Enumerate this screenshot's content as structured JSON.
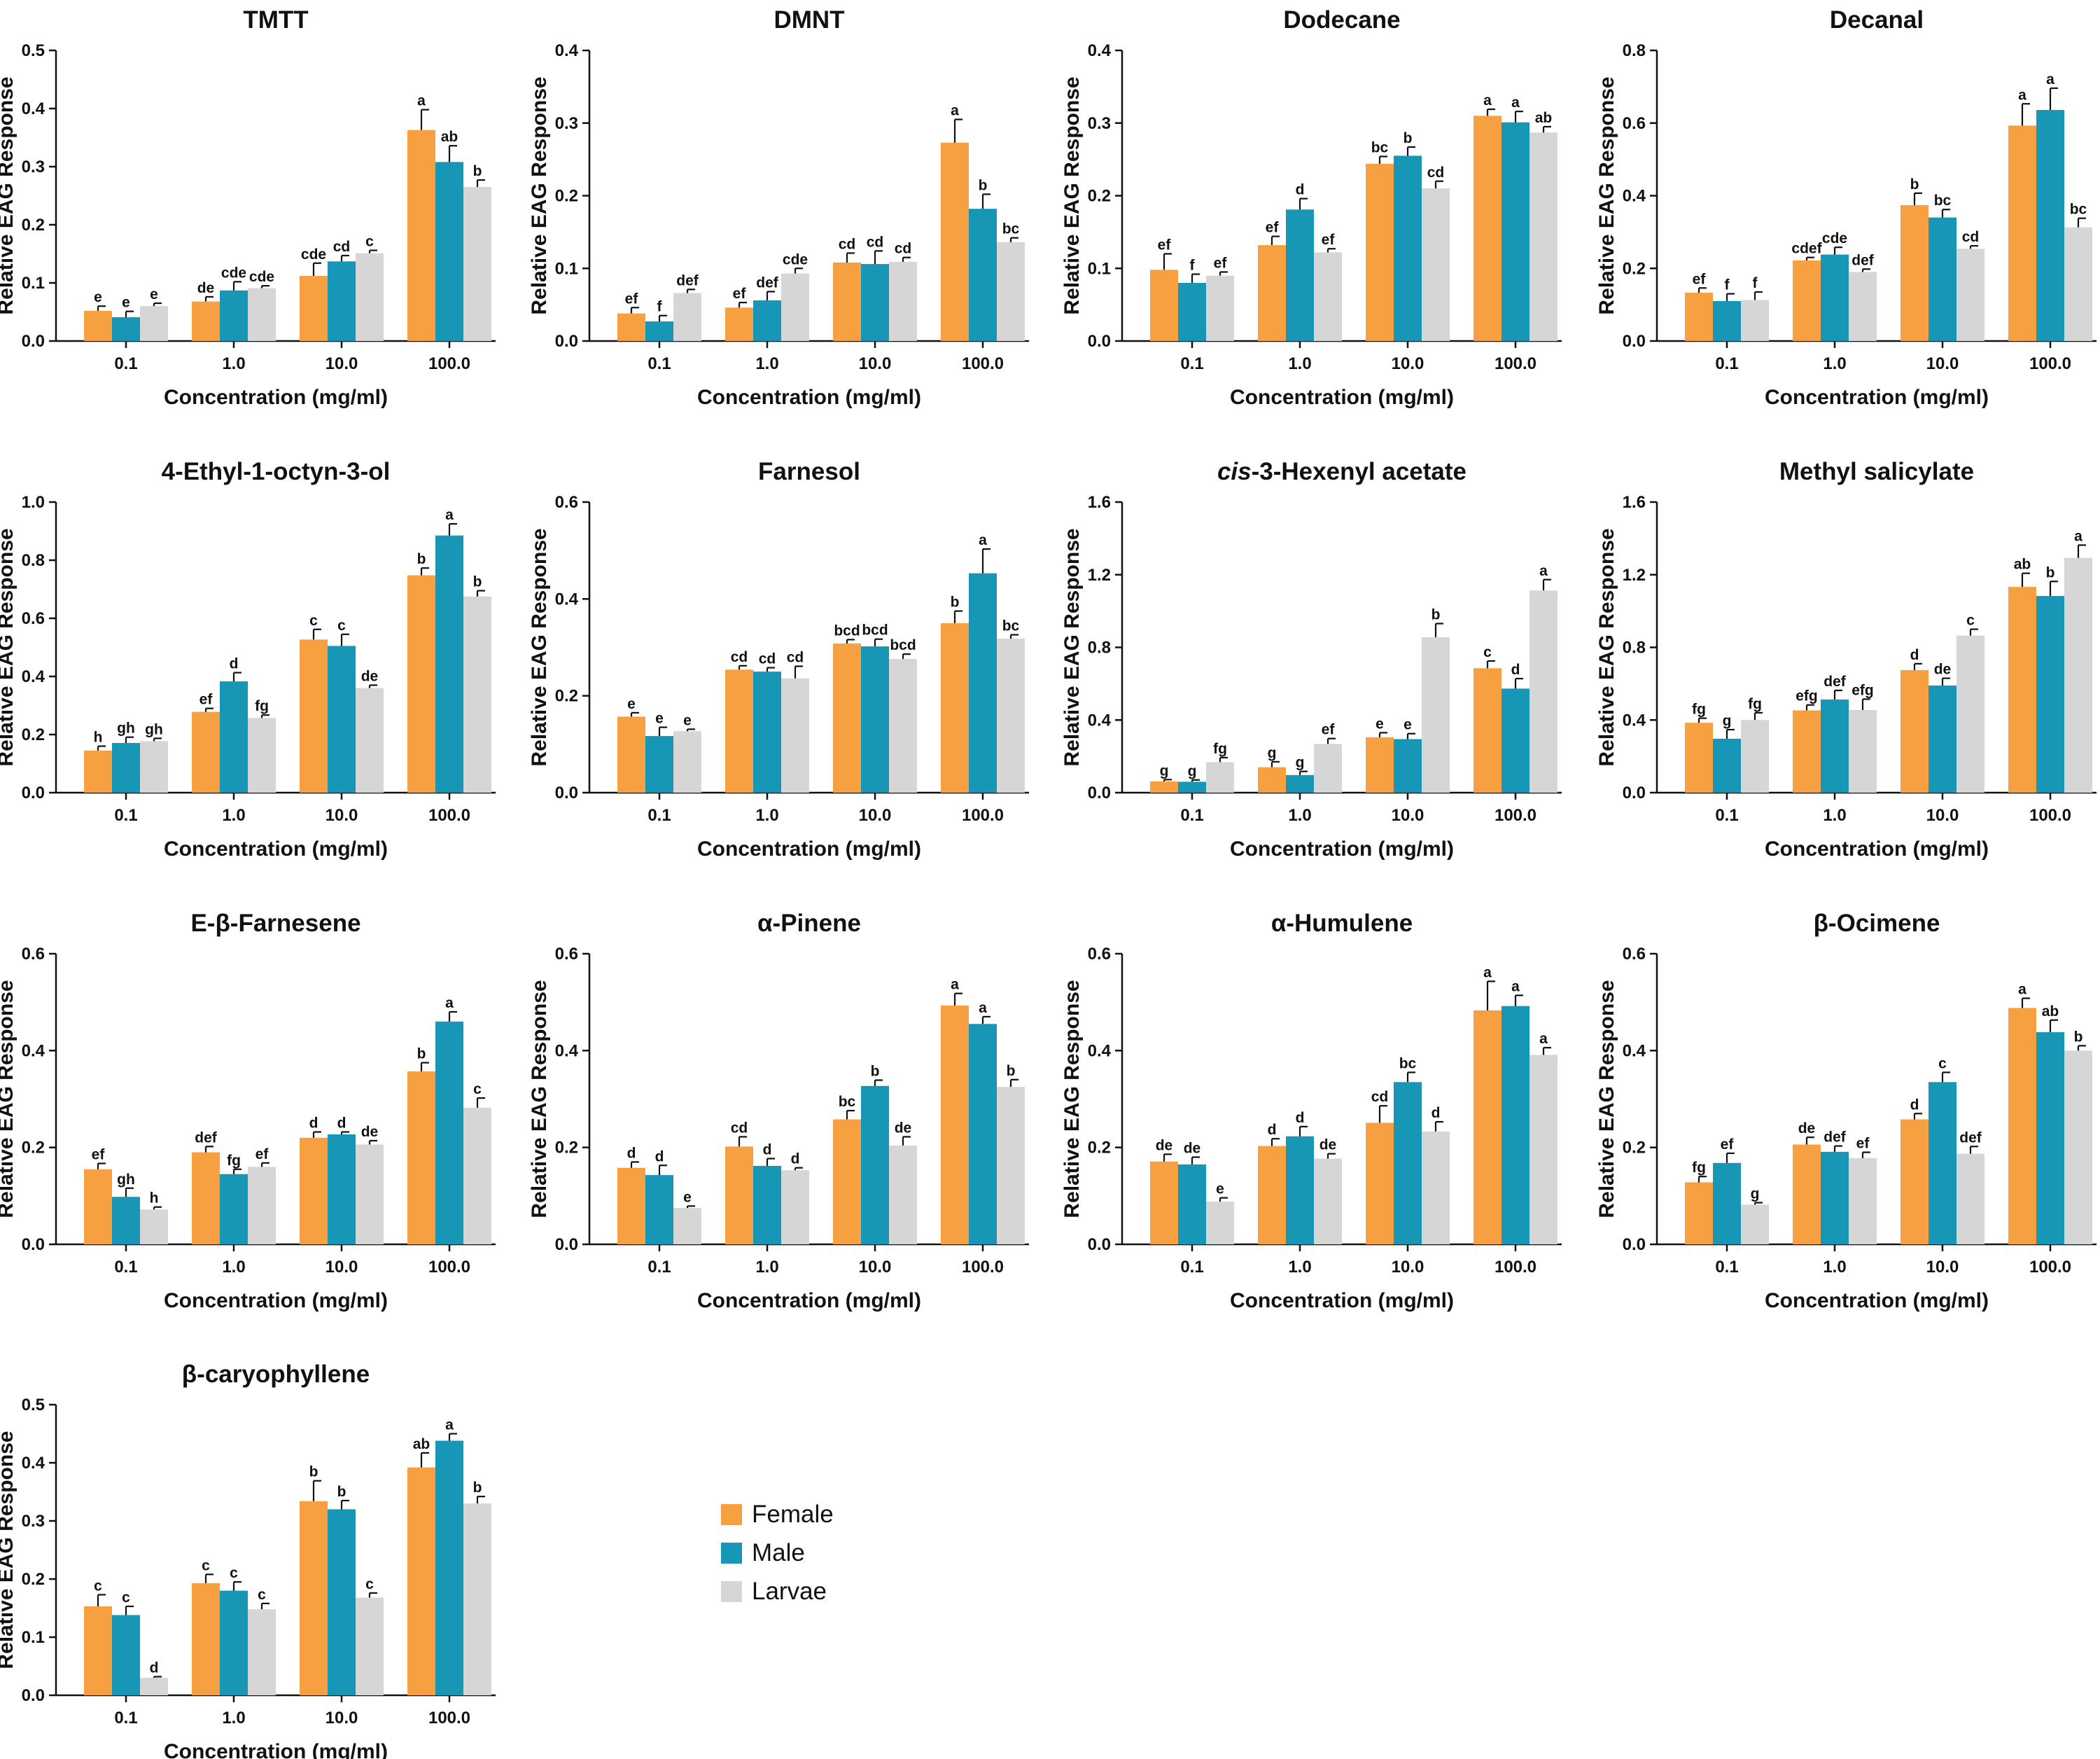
{
  "figure": {
    "axis_x_label": "Concentration (mg/ml)",
    "axis_y_label": "Relative EAG Response",
    "legend": [
      {
        "label": "Female",
        "color": "#F7A042"
      },
      {
        "label": "Male",
        "color": "#1797B5"
      },
      {
        "label": "Larvae",
        "color": "#D6D6D6"
      }
    ]
  },
  "chart_data": [
    {
      "type": "bar",
      "title": "TMTT",
      "categories": [
        "0.1",
        "1.0",
        "10.0",
        "100.0"
      ],
      "ylim": [
        0,
        0.5
      ],
      "yticks": [
        "0.0",
        "0.1",
        "0.2",
        "0.3",
        "0.4",
        "0.5"
      ],
      "series": [
        {
          "name": "Female",
          "values": [
            0.052,
            0.068,
            0.112,
            0.363
          ],
          "errors": [
            0.008,
            0.008,
            0.022,
            0.035
          ],
          "letters": [
            "e",
            "de",
            "cde",
            "a"
          ]
        },
        {
          "name": "Male",
          "values": [
            0.041,
            0.087,
            0.137,
            0.308
          ],
          "errors": [
            0.01,
            0.015,
            0.01,
            0.028
          ],
          "letters": [
            "e",
            "cde",
            "cd",
            "ab"
          ]
        },
        {
          "name": "Larvae",
          "values": [
            0.06,
            0.091,
            0.151,
            0.265
          ],
          "errors": [
            0.005,
            0.004,
            0.005,
            0.012
          ],
          "letters": [
            "e",
            "cde",
            "c",
            "b"
          ]
        }
      ]
    },
    {
      "type": "bar",
      "title": "DMNT",
      "categories": [
        "0.1",
        "1.0",
        "10.0",
        "100.0"
      ],
      "ylim": [
        0,
        0.4
      ],
      "yticks": [
        "0.0",
        "0.1",
        "0.2",
        "0.3",
        "0.4"
      ],
      "series": [
        {
          "name": "Female",
          "values": [
            0.038,
            0.046,
            0.108,
            0.273
          ],
          "errors": [
            0.008,
            0.007,
            0.013,
            0.032
          ],
          "letters": [
            "ef",
            "ef",
            "cd",
            "a"
          ]
        },
        {
          "name": "Male",
          "values": [
            0.027,
            0.056,
            0.106,
            0.182
          ],
          "errors": [
            0.008,
            0.012,
            0.018,
            0.02
          ],
          "letters": [
            "f",
            "def",
            "cd",
            "b"
          ]
        },
        {
          "name": "Larvae",
          "values": [
            0.066,
            0.093,
            0.109,
            0.136
          ],
          "errors": [
            0.005,
            0.007,
            0.006,
            0.006
          ],
          "letters": [
            "def",
            "cde",
            "cd",
            "bc"
          ]
        }
      ]
    },
    {
      "type": "bar",
      "title": "Dodecane",
      "categories": [
        "0.1",
        "1.0",
        "10.0",
        "100.0"
      ],
      "ylim": [
        0,
        0.4
      ],
      "yticks": [
        "0.0",
        "0.1",
        "0.2",
        "0.3",
        "0.4"
      ],
      "series": [
        {
          "name": "Female",
          "values": [
            0.098,
            0.132,
            0.244,
            0.31
          ],
          "errors": [
            0.022,
            0.012,
            0.01,
            0.009
          ],
          "letters": [
            "ef",
            "ef",
            "bc",
            "a"
          ]
        },
        {
          "name": "Male",
          "values": [
            0.08,
            0.181,
            0.255,
            0.301
          ],
          "errors": [
            0.012,
            0.015,
            0.012,
            0.015
          ],
          "letters": [
            "f",
            "d",
            "b",
            "a"
          ]
        },
        {
          "name": "Larvae",
          "values": [
            0.09,
            0.122,
            0.21,
            0.287
          ],
          "errors": [
            0.005,
            0.005,
            0.01,
            0.008
          ],
          "letters": [
            "ef",
            "ef",
            "cd",
            "ab"
          ]
        }
      ]
    },
    {
      "type": "bar",
      "title": "Decanal",
      "categories": [
        "0.1",
        "1.0",
        "10.0",
        "100.0"
      ],
      "ylim": [
        0,
        0.8
      ],
      "yticks": [
        "0.0",
        "0.2",
        "0.4",
        "0.6",
        "0.8"
      ],
      "series": [
        {
          "name": "Female",
          "values": [
            0.133,
            0.222,
            0.374,
            0.593
          ],
          "errors": [
            0.013,
            0.008,
            0.033,
            0.06
          ],
          "letters": [
            "ef",
            "cdef",
            "b",
            "a"
          ]
        },
        {
          "name": "Male",
          "values": [
            0.11,
            0.238,
            0.34,
            0.636
          ],
          "errors": [
            0.02,
            0.02,
            0.022,
            0.06
          ],
          "letters": [
            "f",
            "cde",
            "bc",
            "a"
          ]
        },
        {
          "name": "Larvae",
          "values": [
            0.113,
            0.19,
            0.254,
            0.313
          ],
          "errors": [
            0.022,
            0.008,
            0.008,
            0.025
          ],
          "letters": [
            "f",
            "def",
            "cd",
            "bc"
          ]
        }
      ]
    },
    {
      "type": "bar",
      "title": "4-Ethyl-1-octyn-3-ol",
      "categories": [
        "0.1",
        "1.0",
        "10.0",
        "100.0"
      ],
      "ylim": [
        0,
        1.0
      ],
      "yticks": [
        "0.0",
        "0.2",
        "0.4",
        "0.6",
        "0.8",
        "1.0"
      ],
      "series": [
        {
          "name": "Female",
          "values": [
            0.145,
            0.278,
            0.527,
            0.748
          ],
          "errors": [
            0.015,
            0.012,
            0.035,
            0.025
          ],
          "letters": [
            "h",
            "ef",
            "c",
            "b"
          ]
        },
        {
          "name": "Male",
          "values": [
            0.171,
            0.383,
            0.505,
            0.885
          ],
          "errors": [
            0.02,
            0.03,
            0.04,
            0.04
          ],
          "letters": [
            "gh",
            "d",
            "c",
            "a"
          ]
        },
        {
          "name": "Larvae",
          "values": [
            0.177,
            0.257,
            0.36,
            0.675
          ],
          "errors": [
            0.01,
            0.01,
            0.01,
            0.02
          ],
          "letters": [
            "gh",
            "fg",
            "de",
            "b"
          ]
        }
      ]
    },
    {
      "type": "bar",
      "title": "Farnesol",
      "categories": [
        "0.1",
        "1.0",
        "10.0",
        "100.0"
      ],
      "ylim": [
        0,
        0.6
      ],
      "yticks": [
        "0.0",
        "0.2",
        "0.4",
        "0.6"
      ],
      "series": [
        {
          "name": "Female",
          "values": [
            0.157,
            0.254,
            0.308,
            0.35
          ],
          "errors": [
            0.008,
            0.008,
            0.008,
            0.025
          ],
          "letters": [
            "e",
            "cd",
            "bcd",
            "b"
          ]
        },
        {
          "name": "Male",
          "values": [
            0.117,
            0.25,
            0.302,
            0.453
          ],
          "errors": [
            0.018,
            0.008,
            0.015,
            0.05
          ],
          "letters": [
            "e",
            "cd",
            "bcd",
            "a"
          ]
        },
        {
          "name": "Larvae",
          "values": [
            0.127,
            0.236,
            0.276,
            0.318
          ],
          "errors": [
            0.004,
            0.025,
            0.01,
            0.008
          ],
          "letters": [
            "e",
            "cd",
            "bcd",
            "bc"
          ]
        }
      ]
    },
    {
      "type": "bar",
      "title": "cis-3-Hexenyl acetate",
      "title_italic": "cis",
      "title_rest": "-3-Hexenyl acetate",
      "categories": [
        "0.1",
        "1.0",
        "10.0",
        "100.0"
      ],
      "ylim": [
        0,
        1.6
      ],
      "yticks": [
        "0.0",
        "0.4",
        "0.8",
        "1.2",
        "1.6"
      ],
      "series": [
        {
          "name": "Female",
          "values": [
            0.062,
            0.14,
            0.305,
            0.685
          ],
          "errors": [
            0.01,
            0.03,
            0.025,
            0.04
          ],
          "letters": [
            "g",
            "g",
            "e",
            "c"
          ]
        },
        {
          "name": "Male",
          "values": [
            0.06,
            0.097,
            0.295,
            0.573
          ],
          "errors": [
            0.01,
            0.02,
            0.03,
            0.055
          ],
          "letters": [
            "g",
            "g",
            "e",
            "d"
          ]
        },
        {
          "name": "Larvae",
          "values": [
            0.168,
            0.268,
            0.856,
            1.113
          ],
          "errors": [
            0.025,
            0.03,
            0.075,
            0.06
          ],
          "letters": [
            "fg",
            "ef",
            "b",
            "a"
          ]
        }
      ]
    },
    {
      "type": "bar",
      "title": "Methyl salicylate",
      "categories": [
        "0.1",
        "1.0",
        "10.0",
        "100.0"
      ],
      "ylim": [
        0,
        1.6
      ],
      "yticks": [
        "0.0",
        "0.4",
        "0.8",
        "1.2",
        "1.6"
      ],
      "series": [
        {
          "name": "Female",
          "values": [
            0.385,
            0.453,
            0.675,
            1.133
          ],
          "errors": [
            0.025,
            0.03,
            0.035,
            0.075
          ],
          "letters": [
            "fg",
            "efg",
            "d",
            "ab"
          ]
        },
        {
          "name": "Male",
          "values": [
            0.297,
            0.513,
            0.59,
            1.083
          ],
          "errors": [
            0.05,
            0.05,
            0.04,
            0.08
          ],
          "letters": [
            "g",
            "def",
            "de",
            "b"
          ]
        },
        {
          "name": "Larvae",
          "values": [
            0.4,
            0.455,
            0.865,
            1.293
          ],
          "errors": [
            0.04,
            0.06,
            0.035,
            0.07
          ],
          "letters": [
            "fg",
            "efg",
            "c",
            "a"
          ]
        }
      ]
    },
    {
      "type": "bar",
      "title": "E-β-Farnesene",
      "categories": [
        "0.1",
        "1.0",
        "10.0",
        "100.0"
      ],
      "ylim": [
        0,
        0.6
      ],
      "yticks": [
        "0.0",
        "0.2",
        "0.4",
        "0.6"
      ],
      "series": [
        {
          "name": "Female",
          "values": [
            0.155,
            0.19,
            0.22,
            0.357
          ],
          "errors": [
            0.012,
            0.012,
            0.012,
            0.018
          ],
          "letters": [
            "ef",
            "def",
            "d",
            "b"
          ]
        },
        {
          "name": "Male",
          "values": [
            0.098,
            0.145,
            0.227,
            0.46
          ],
          "errors": [
            0.018,
            0.01,
            0.005,
            0.02
          ],
          "letters": [
            "gh",
            "fg",
            "d",
            "a"
          ]
        },
        {
          "name": "Larvae",
          "values": [
            0.072,
            0.16,
            0.206,
            0.282
          ],
          "errors": [
            0.005,
            0.008,
            0.008,
            0.02
          ],
          "letters": [
            "h",
            "ef",
            "de",
            "c"
          ]
        }
      ]
    },
    {
      "type": "bar",
      "title": "α-Pinene",
      "categories": [
        "0.1",
        "1.0",
        "10.0",
        "100.0"
      ],
      "ylim": [
        0,
        0.6
      ],
      "yticks": [
        "0.0",
        "0.2",
        "0.4",
        "0.6"
      ],
      "series": [
        {
          "name": "Female",
          "values": [
            0.158,
            0.202,
            0.258,
            0.493
          ],
          "errors": [
            0.012,
            0.02,
            0.018,
            0.025
          ],
          "letters": [
            "d",
            "cd",
            "bc",
            "a"
          ]
        },
        {
          "name": "Male",
          "values": [
            0.143,
            0.162,
            0.327,
            0.455
          ],
          "errors": [
            0.02,
            0.015,
            0.012,
            0.015
          ],
          "letters": [
            "d",
            "d",
            "b",
            "a"
          ]
        },
        {
          "name": "Larvae",
          "values": [
            0.075,
            0.153,
            0.204,
            0.325
          ],
          "errors": [
            0.004,
            0.005,
            0.018,
            0.015
          ],
          "letters": [
            "e",
            "d",
            "de",
            "b"
          ]
        }
      ]
    },
    {
      "type": "bar",
      "title": "α-Humulene",
      "categories": [
        "0.1",
        "1.0",
        "10.0",
        "100.0"
      ],
      "ylim": [
        0,
        0.6
      ],
      "yticks": [
        "0.0",
        "0.2",
        "0.4",
        "0.6"
      ],
      "series": [
        {
          "name": "Female",
          "values": [
            0.171,
            0.203,
            0.251,
            0.483
          ],
          "errors": [
            0.015,
            0.015,
            0.035,
            0.06
          ],
          "letters": [
            "de",
            "d",
            "cd",
            "a"
          ]
        },
        {
          "name": "Male",
          "values": [
            0.165,
            0.223,
            0.335,
            0.492
          ],
          "errors": [
            0.015,
            0.02,
            0.02,
            0.022
          ],
          "letters": [
            "de",
            "d",
            "bc",
            "a"
          ]
        },
        {
          "name": "Larvae",
          "values": [
            0.088,
            0.177,
            0.233,
            0.391
          ],
          "errors": [
            0.008,
            0.01,
            0.02,
            0.015
          ],
          "letters": [
            "e",
            "de",
            "d",
            "a"
          ]
        }
      ]
    },
    {
      "type": "bar",
      "title": "β-Ocimene",
      "categories": [
        "0.1",
        "1.0",
        "10.0",
        "100.0"
      ],
      "ylim": [
        0,
        0.6
      ],
      "yticks": [
        "0.0",
        "0.2",
        "0.4",
        "0.6"
      ],
      "series": [
        {
          "name": "Female",
          "values": [
            0.128,
            0.206,
            0.258,
            0.488
          ],
          "errors": [
            0.012,
            0.015,
            0.012,
            0.02
          ],
          "letters": [
            "fg",
            "de",
            "d",
            "a"
          ]
        },
        {
          "name": "Male",
          "values": [
            0.168,
            0.191,
            0.335,
            0.438
          ],
          "errors": [
            0.02,
            0.012,
            0.02,
            0.025
          ],
          "letters": [
            "ef",
            "def",
            "c",
            "ab"
          ]
        },
        {
          "name": "Larvae",
          "values": [
            0.082,
            0.178,
            0.187,
            0.4
          ],
          "errors": [
            0.004,
            0.012,
            0.015,
            0.01
          ],
          "letters": [
            "g",
            "ef",
            "def",
            "b"
          ]
        }
      ]
    },
    {
      "type": "bar",
      "title": "β-caryophyllene",
      "categories": [
        "0.1",
        "1.0",
        "10.0",
        "100.0"
      ],
      "ylim": [
        0,
        0.5
      ],
      "yticks": [
        "0.0",
        "0.1",
        "0.2",
        "0.3",
        "0.4",
        "0.5"
      ],
      "series": [
        {
          "name": "Female",
          "values": [
            0.153,
            0.193,
            0.334,
            0.392
          ],
          "errors": [
            0.02,
            0.015,
            0.035,
            0.025
          ],
          "letters": [
            "c",
            "c",
            "b",
            "ab"
          ]
        },
        {
          "name": "Male",
          "values": [
            0.138,
            0.18,
            0.32,
            0.438
          ],
          "errors": [
            0.015,
            0.015,
            0.015,
            0.012
          ],
          "letters": [
            "c",
            "c",
            "b",
            "a"
          ]
        },
        {
          "name": "Larvae",
          "values": [
            0.03,
            0.148,
            0.168,
            0.33
          ],
          "errors": [
            0.002,
            0.01,
            0.008,
            0.012
          ],
          "letters": [
            "d",
            "c",
            "c",
            "b"
          ]
        }
      ]
    }
  ]
}
